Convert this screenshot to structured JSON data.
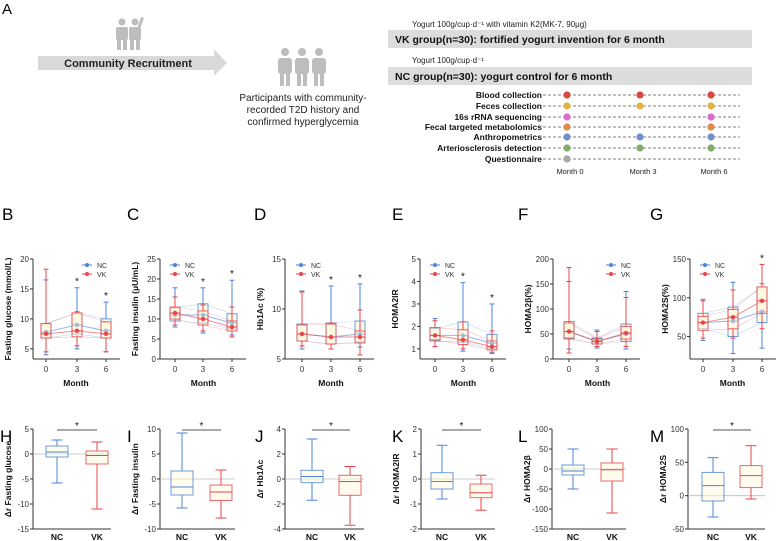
{
  "panel_a": {
    "letter": "A",
    "recruitment": "Community Recruitment",
    "participants": [
      "Participants with community-",
      "recorded T2D history and",
      "confirmed hyperglycemia"
    ],
    "vk_yogurt": "Yogurt 100g/cup·d⁻¹ with vitamin K2(MK-7, 90μg)",
    "vk_group": "VK group(n=30): fortified yogurt invention for 6 month",
    "nc_yogurt": "Yogurt 100g/cup·d⁻¹",
    "nc_group": "NC group(n=30): yogurt control for 6 month",
    "months": [
      "Month 0",
      "Month 3",
      "Month 6"
    ],
    "timeline": [
      {
        "label": "Blood collection",
        "color": "#d9473f",
        "at": [
          0,
          3,
          6
        ]
      },
      {
        "label": "Feces collection",
        "color": "#e0b441",
        "at": [
          0,
          3,
          6
        ]
      },
      {
        "label": "16s rRNA sequencing",
        "color": "#e06bd0",
        "at": [
          0,
          6
        ]
      },
      {
        "label": "Fecal targeted metabolomics",
        "color": "#e3894b",
        "at": [
          0,
          6
        ]
      },
      {
        "label": "Anthropometrics",
        "color": "#6f8fcf",
        "at": [
          0,
          3,
          6
        ]
      },
      {
        "label": "Arteriosclerosis detection",
        "color": "#7fae6a",
        "at": [
          0,
          3,
          6
        ]
      },
      {
        "label": "Questionnaire",
        "color": "#a9a9a9",
        "at": [
          0
        ]
      }
    ]
  },
  "colors": {
    "NC": "#4a86d8",
    "VK": "#e8454a"
  },
  "chart_data": [
    {
      "panel": "B",
      "type": "box-line",
      "xlabel": "Month",
      "ylabel": "Fasting glucose (mmol/L)",
      "categories": [
        "0",
        "3",
        "6"
      ],
      "ylim": [
        3.3,
        20
      ],
      "yticks": [
        5,
        10,
        15,
        20
      ],
      "legend": [
        "NC",
        "VK"
      ],
      "significant": [
        false,
        true,
        true
      ],
      "series": [
        {
          "name": "NC",
          "box": [
            [
              4,
              6.8,
              7.8,
              9.2,
              16.5
            ],
            [
              5,
              7.5,
              9,
              11,
              15.2
            ],
            [
              4.5,
              6.8,
              8,
              10,
              12.8
            ]
          ]
        },
        {
          "name": "VK",
          "box": [
            [
              4.5,
              6.8,
              7.5,
              9.2,
              18.3
            ],
            [
              5.5,
              7,
              8,
              11,
              11.2
            ],
            [
              4.5,
              6.8,
              7.5,
              9.5,
              9.5
            ]
          ]
        }
      ]
    },
    {
      "panel": "C",
      "type": "box-line",
      "xlabel": "Month",
      "ylabel": "Fasting insulin (μU/mL)",
      "categories": [
        "0",
        "3",
        "6"
      ],
      "ylim": [
        0,
        25
      ],
      "yticks": [
        0,
        5,
        10,
        15,
        20,
        25
      ],
      "legend": [
        "NC",
        "VK"
      ],
      "significant": [
        false,
        true,
        true
      ],
      "series": [
        {
          "name": "NC",
          "box": [
            [
              8,
              9.5,
              11,
              12.8,
              17.8
            ],
            [
              6.5,
              9,
              11,
              13.8,
              17.8
            ],
            [
              6,
              7.5,
              9,
              11.3,
              19.7
            ]
          ]
        },
        {
          "name": "VK",
          "box": [
            [
              8.5,
              10,
              11.5,
              13,
              15.5
            ],
            [
              7,
              8.5,
              10,
              12,
              13.5
            ],
            [
              5.5,
              7,
              8,
              9.5,
              13
            ]
          ]
        }
      ]
    },
    {
      "panel": "D",
      "type": "box-line",
      "xlabel": "Month",
      "ylabel": "Hb1Ac (%)",
      "categories": [
        "0",
        "3",
        "6"
      ],
      "ylim": [
        5,
        15
      ],
      "yticks": [
        5,
        10,
        15
      ],
      "legend": [
        "NC",
        "VK"
      ],
      "significant": [
        false,
        true,
        true
      ],
      "series": [
        {
          "name": "NC",
          "box": [
            [
              6,
              6.8,
              7.5,
              8.5,
              11.8
            ],
            [
              6,
              6.5,
              7.2,
              8.6,
              12.3
            ],
            [
              6.2,
              6.7,
              7.5,
              8.8,
              12.5
            ]
          ]
        },
        {
          "name": "VK",
          "box": [
            [
              6.3,
              6.8,
              7.5,
              8.4,
              11.7
            ],
            [
              6,
              6.5,
              7.2,
              8.5,
              8.6
            ],
            [
              5.4,
              6.6,
              7.2,
              7.8,
              9.9
            ]
          ]
        }
      ]
    },
    {
      "panel": "E",
      "type": "box-line",
      "xlabel": "Month",
      "ylabel": "HOMA2IR",
      "categories": [
        "0",
        "3",
        "6"
      ],
      "ylim": [
        0.55,
        5
      ],
      "yticks": [
        1,
        2,
        3,
        4,
        5
      ],
      "legend": [
        "NC",
        "VK"
      ],
      "significant": [
        false,
        true,
        true
      ],
      "series": [
        {
          "name": "NC",
          "box": [
            [
              1.1,
              1.35,
              1.6,
              1.9,
              2.35
            ],
            [
              0.9,
              1.3,
              1.6,
              2.2,
              3.95
            ],
            [
              0.85,
              1,
              1.25,
              1.65,
              3
            ]
          ]
        },
        {
          "name": "VK",
          "box": [
            [
              1.1,
              1.4,
              1.6,
              1.95,
              2.25
            ],
            [
              1,
              1.2,
              1.4,
              1.85,
              2.2
            ],
            [
              0.8,
              0.95,
              1.1,
              1.35,
              1.8
            ]
          ]
        }
      ]
    },
    {
      "panel": "F",
      "type": "box-line",
      "xlabel": "Month",
      "ylabel": "HOMA2β(%)",
      "categories": [
        "0",
        "3",
        "6"
      ],
      "ylim": [
        0,
        200
      ],
      "yticks": [
        0,
        50,
        100,
        150,
        200
      ],
      "legend": [
        "NC",
        "VK"
      ],
      "significant": [
        false,
        false,
        false
      ],
      "series": [
        {
          "name": "NC",
          "box": [
            [
              20,
              40,
              55,
              75,
              155
            ],
            [
              22,
              30,
              35,
              42,
              58
            ],
            [
              20,
              35,
              50,
              70,
              135
            ]
          ]
        },
        {
          "name": "VK",
          "box": [
            [
              12,
              42,
              55,
              72,
              183
            ],
            [
              25,
              30,
              35,
              40,
              55
            ],
            [
              25,
              40,
              52,
              65,
              123
            ]
          ]
        }
      ]
    },
    {
      "panel": "G",
      "type": "box-line",
      "xlabel": "Month",
      "ylabel": "HOMA2S(%)",
      "categories": [
        "0",
        "3",
        "6"
      ],
      "ylim": [
        21,
        150
      ],
      "yticks": [
        50,
        100,
        150
      ],
      "legend": [
        "NC",
        "VK"
      ],
      "significant": [
        false,
        false,
        true
      ],
      "series": [
        {
          "name": "NC",
          "box": [
            [
              45,
              60,
              68,
              80,
              98
            ],
            [
              28,
              50,
              70,
              88,
              120
            ],
            [
              35,
              68,
              82,
              114,
              118
            ]
          ]
        },
        {
          "name": "VK",
          "box": [
            [
              48,
              58,
              68,
              76,
              96
            ],
            [
              48,
              60,
              75,
              85,
              110
            ],
            [
              60,
              80,
              96,
              114,
              143
            ]
          ]
        }
      ]
    },
    {
      "panel": "H",
      "type": "box",
      "ylabel": "Δr Fasting glucose",
      "categories": [
        "NC",
        "VK"
      ],
      "ylim": [
        -15,
        5
      ],
      "yticks": [
        -15,
        -10,
        -5,
        0,
        5
      ],
      "significant": true,
      "box": [
        [
          -5.8,
          -0.6,
          0.4,
          1.6,
          2.8
        ],
        [
          -11,
          -2,
          -0.3,
          0.6,
          2.4
        ]
      ]
    },
    {
      "panel": "I",
      "type": "box",
      "ylabel": "Δr Fasting insulin",
      "categories": [
        "NC",
        "VK"
      ],
      "ylim": [
        -10,
        10
      ],
      "yticks": [
        -10,
        -5,
        0,
        5,
        10
      ],
      "significant": true,
      "box": [
        [
          -5.8,
          -3.2,
          -1.6,
          1.6,
          9.2
        ],
        [
          -7.8,
          -4.3,
          -2.6,
          -1.2,
          1.8
        ]
      ]
    },
    {
      "panel": "J",
      "type": "box",
      "ylabel": "Δr Hb1Ac",
      "categories": [
        "NC",
        "VK"
      ],
      "ylim": [
        -4,
        4
      ],
      "yticks": [
        -4,
        -2,
        0,
        2,
        4
      ],
      "significant": true,
      "box": [
        [
          -1.7,
          -0.3,
          0.2,
          0.7,
          3.2
        ],
        [
          -3.7,
          -1.3,
          -0.2,
          0.3,
          1
        ]
      ]
    },
    {
      "panel": "K",
      "type": "box",
      "ylabel": "Δr HOMA2IR",
      "categories": [
        "NC",
        "VK"
      ],
      "ylim": [
        -2,
        2
      ],
      "yticks": [
        -2,
        -1,
        0,
        1,
        2
      ],
      "significant": true,
      "box": [
        [
          -0.8,
          -0.4,
          -0.1,
          0.25,
          1.35
        ],
        [
          -1.25,
          -0.75,
          -0.55,
          -0.2,
          0.15
        ]
      ]
    },
    {
      "panel": "L",
      "type": "box",
      "ylabel": "Δr HOMA2β",
      "categories": [
        "NC",
        "VK"
      ],
      "ylim": [
        -150,
        100
      ],
      "yticks": [
        -150,
        -100,
        -50,
        0,
        50,
        100
      ],
      "significant": false,
      "box": [
        [
          -50,
          -15,
          -5,
          10,
          50
        ],
        [
          -110,
          -30,
          -2,
          15,
          50
        ]
      ]
    },
    {
      "panel": "M",
      "type": "box",
      "ylabel": "Δr HOMA2S",
      "categories": [
        "NC",
        "VK"
      ],
      "ylim": [
        -50,
        100
      ],
      "yticks": [
        -50,
        0,
        50,
        100
      ],
      "significant": true,
      "box": [
        [
          -32,
          -8,
          15,
          35,
          57
        ],
        [
          -5,
          12,
          30,
          45,
          75
        ]
      ]
    }
  ]
}
